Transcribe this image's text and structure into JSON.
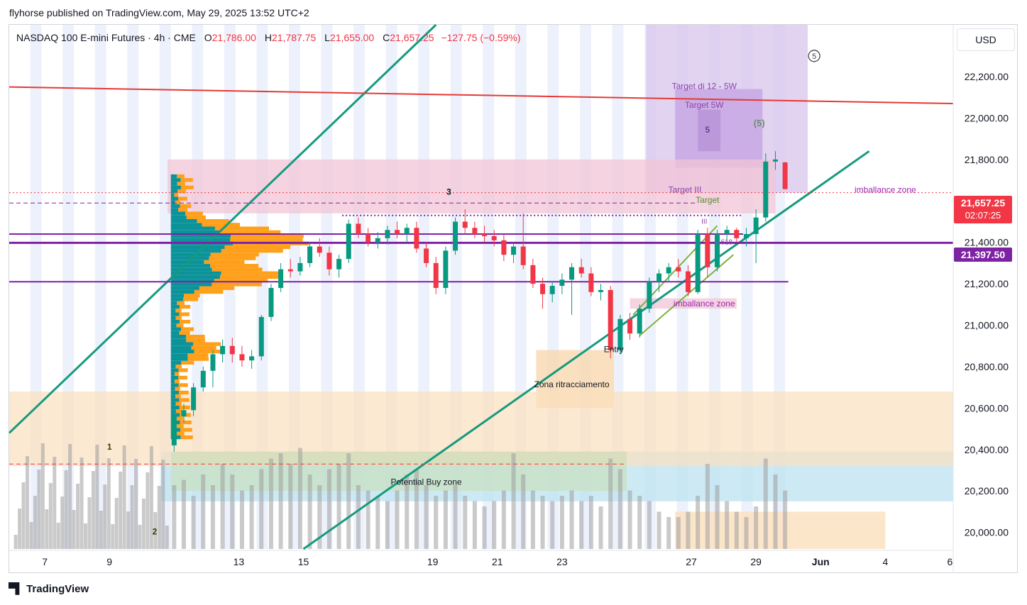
{
  "header": {
    "published_by": "flyhorse published on TradingView.com, May 29, 2025 13:52 UTC+2"
  },
  "legend": {
    "symbol": "NASDAQ 100 E-mini Futures · 4h · CME",
    "open_label": "O",
    "open": "21,786.00",
    "high_label": "H",
    "high": "21,787.75",
    "low_label": "L",
    "low": "21,655.00",
    "close_label": "C",
    "close": "21,657.25",
    "change": "−127.75 (−0.59%)"
  },
  "currency_button": "USD",
  "last_price_tag": {
    "price": "21,657.25",
    "countdown": "02:07:25",
    "color": "#f23645"
  },
  "line_price_tag": {
    "price": "21,397.50",
    "color": "#7e22a4"
  },
  "footer": {
    "brand": "TradingView"
  },
  "colors": {
    "up": "#089981",
    "down": "#f23645",
    "channel": "#159a7e",
    "red_line": "#e53935",
    "purple_line": "#7e22a4"
  },
  "chart_data": {
    "type": "candlestick",
    "y_axis": {
      "ticks": [
        "22,400.00",
        "22,200.00",
        "22,000.00",
        "21,800.00",
        "21,600.00",
        "21,400.00",
        "21,200.00",
        "21,000.00",
        "20,800.00",
        "20,600.00",
        "20,400.00",
        "20,200.00",
        "20,000.00"
      ],
      "tick_values": [
        22400,
        22200,
        22000,
        21800,
        21600,
        21400,
        21200,
        21000,
        20800,
        20600,
        20400,
        20200,
        20000
      ],
      "range": [
        19920,
        22450
      ]
    },
    "x_axis": {
      "ticks": [
        "7",
        "9",
        "13",
        "15",
        "19",
        "21",
        "23",
        "27",
        "29",
        "Jun",
        "4",
        "6"
      ],
      "tick_positions": [
        7,
        9,
        13,
        15,
        19,
        21,
        23,
        27,
        29,
        31,
        33,
        35
      ],
      "range": [
        5.9,
        35.1
      ]
    },
    "candles": [
      {
        "x": 11.0,
        "o": 20420,
        "h": 20580,
        "l": 20390,
        "c": 20560
      },
      {
        "x": 11.3,
        "o": 20560,
        "h": 20620,
        "l": 20530,
        "c": 20590
      },
      {
        "x": 11.6,
        "o": 20590,
        "h": 20720,
        "l": 20560,
        "c": 20700
      },
      {
        "x": 11.9,
        "o": 20700,
        "h": 20800,
        "l": 20680,
        "c": 20780
      },
      {
        "x": 12.2,
        "o": 20780,
        "h": 20880,
        "l": 20700,
        "c": 20860
      },
      {
        "x": 12.5,
        "o": 20860,
        "h": 20930,
        "l": 20820,
        "c": 20900
      },
      {
        "x": 12.8,
        "o": 20900,
        "h": 20940,
        "l": 20820,
        "c": 20860
      },
      {
        "x": 13.1,
        "o": 20860,
        "h": 20900,
        "l": 20800,
        "c": 20830
      },
      {
        "x": 13.4,
        "o": 20830,
        "h": 20880,
        "l": 20790,
        "c": 20850
      },
      {
        "x": 13.7,
        "o": 20850,
        "h": 21050,
        "l": 20830,
        "c": 21040
      },
      {
        "x": 14.0,
        "o": 21040,
        "h": 21200,
        "l": 21020,
        "c": 21180
      },
      {
        "x": 14.3,
        "o": 21180,
        "h": 21300,
        "l": 21160,
        "c": 21270
      },
      {
        "x": 14.6,
        "o": 21270,
        "h": 21320,
        "l": 21230,
        "c": 21260
      },
      {
        "x": 14.9,
        "o": 21260,
        "h": 21330,
        "l": 21240,
        "c": 21300
      },
      {
        "x": 15.2,
        "o": 21300,
        "h": 21400,
        "l": 21280,
        "c": 21380
      },
      {
        "x": 15.5,
        "o": 21380,
        "h": 21420,
        "l": 21330,
        "c": 21350
      },
      {
        "x": 15.8,
        "o": 21350,
        "h": 21380,
        "l": 21240,
        "c": 21270
      },
      {
        "x": 16.1,
        "o": 21270,
        "h": 21340,
        "l": 21230,
        "c": 21320
      },
      {
        "x": 16.4,
        "o": 21320,
        "h": 21510,
        "l": 21300,
        "c": 21490
      },
      {
        "x": 16.7,
        "o": 21490,
        "h": 21520,
        "l": 21420,
        "c": 21440
      },
      {
        "x": 17.0,
        "o": 21440,
        "h": 21470,
        "l": 21380,
        "c": 21400
      },
      {
        "x": 17.3,
        "o": 21400,
        "h": 21450,
        "l": 21370,
        "c": 21420
      },
      {
        "x": 17.6,
        "o": 21420,
        "h": 21480,
        "l": 21390,
        "c": 21460
      },
      {
        "x": 17.9,
        "o": 21460,
        "h": 21500,
        "l": 21420,
        "c": 21440
      },
      {
        "x": 18.2,
        "o": 21440,
        "h": 21490,
        "l": 21400,
        "c": 21470
      },
      {
        "x": 18.5,
        "o": 21470,
        "h": 21500,
        "l": 21350,
        "c": 21370
      },
      {
        "x": 18.8,
        "o": 21370,
        "h": 21400,
        "l": 21280,
        "c": 21300
      },
      {
        "x": 19.1,
        "o": 21300,
        "h": 21330,
        "l": 21150,
        "c": 21180
      },
      {
        "x": 19.4,
        "o": 21180,
        "h": 21380,
        "l": 21150,
        "c": 21360
      },
      {
        "x": 19.7,
        "o": 21360,
        "h": 21520,
        "l": 21340,
        "c": 21500
      },
      {
        "x": 20.0,
        "o": 21500,
        "h": 21560,
        "l": 21440,
        "c": 21470
      },
      {
        "x": 20.3,
        "o": 21470,
        "h": 21500,
        "l": 21420,
        "c": 21440
      },
      {
        "x": 20.6,
        "o": 21440,
        "h": 21480,
        "l": 21400,
        "c": 21430
      },
      {
        "x": 20.9,
        "o": 21430,
        "h": 21460,
        "l": 21380,
        "c": 21410
      },
      {
        "x": 21.2,
        "o": 21410,
        "h": 21440,
        "l": 21310,
        "c": 21340
      },
      {
        "x": 21.5,
        "o": 21340,
        "h": 21400,
        "l": 21300,
        "c": 21380
      },
      {
        "x": 21.8,
        "o": 21380,
        "h": 21540,
        "l": 21270,
        "c": 21290
      },
      {
        "x": 22.1,
        "o": 21290,
        "h": 21320,
        "l": 21180,
        "c": 21200
      },
      {
        "x": 22.4,
        "o": 21200,
        "h": 21230,
        "l": 21080,
        "c": 21150
      },
      {
        "x": 22.7,
        "o": 21150,
        "h": 21210,
        "l": 21110,
        "c": 21190
      },
      {
        "x": 23.0,
        "o": 21190,
        "h": 21250,
        "l": 21150,
        "c": 21220
      },
      {
        "x": 23.3,
        "o": 21220,
        "h": 21300,
        "l": 21050,
        "c": 21280
      },
      {
        "x": 23.6,
        "o": 21280,
        "h": 21320,
        "l": 21230,
        "c": 21250
      },
      {
        "x": 23.9,
        "o": 21250,
        "h": 21280,
        "l": 21140,
        "c": 21160
      },
      {
        "x": 24.2,
        "o": 21160,
        "h": 21200,
        "l": 21120,
        "c": 21170
      },
      {
        "x": 24.5,
        "o": 21170,
        "h": 21190,
        "l": 20840,
        "c": 20880
      },
      {
        "x": 24.8,
        "o": 20880,
        "h": 21050,
        "l": 20860,
        "c": 21030
      },
      {
        "x": 25.1,
        "o": 21030,
        "h": 21060,
        "l": 20930,
        "c": 20960
      },
      {
        "x": 25.4,
        "o": 20960,
        "h": 21100,
        "l": 20940,
        "c": 21080
      },
      {
        "x": 25.7,
        "o": 21080,
        "h": 21230,
        "l": 21060,
        "c": 21210
      },
      {
        "x": 26.0,
        "o": 21210,
        "h": 21270,
        "l": 21160,
        "c": 21250
      },
      {
        "x": 26.3,
        "o": 21250,
        "h": 21300,
        "l": 21210,
        "c": 21280
      },
      {
        "x": 26.6,
        "o": 21280,
        "h": 21320,
        "l": 21230,
        "c": 21260
      },
      {
        "x": 26.9,
        "o": 21260,
        "h": 21290,
        "l": 21140,
        "c": 21160
      },
      {
        "x": 27.2,
        "o": 21160,
        "h": 21460,
        "l": 21150,
        "c": 21440
      },
      {
        "x": 27.5,
        "o": 21440,
        "h": 21470,
        "l": 21230,
        "c": 21280
      },
      {
        "x": 27.8,
        "o": 21280,
        "h": 21460,
        "l": 21260,
        "c": 21440
      },
      {
        "x": 28.1,
        "o": 21440,
        "h": 21480,
        "l": 21400,
        "c": 21460
      },
      {
        "x": 28.4,
        "o": 21460,
        "h": 21470,
        "l": 21400,
        "c": 21420
      },
      {
        "x": 28.7,
        "o": 21420,
        "h": 21470,
        "l": 21380,
        "c": 21440
      },
      {
        "x": 29.0,
        "o": 21440,
        "h": 21560,
        "l": 21300,
        "c": 21520
      },
      {
        "x": 29.3,
        "o": 21520,
        "h": 21830,
        "l": 21500,
        "c": 21790
      },
      {
        "x": 29.6,
        "o": 21790,
        "h": 21840,
        "l": 21750,
        "c": 21800
      },
      {
        "x": 29.9,
        "o": 21786,
        "h": 21788,
        "l": 21655,
        "c": 21657
      }
    ],
    "volume": [
      60,
      65,
      50,
      70,
      60,
      80,
      70,
      55,
      60,
      75,
      85,
      90,
      80,
      95,
      70,
      60,
      75,
      80,
      90,
      60,
      55,
      50,
      45,
      55,
      70,
      75,
      60,
      50,
      55,
      60,
      50,
      45,
      40,
      45,
      55,
      90,
      70,
      55,
      50,
      45,
      50,
      55,
      45,
      50,
      40,
      85,
      75,
      55,
      50,
      45,
      35,
      30,
      30,
      35,
      50,
      80,
      60,
      45,
      35,
      30,
      40,
      85,
      70,
      55
    ],
    "horizontal_lines": [
      {
        "value": 21397.5,
        "color": "#7e22a4",
        "width": 3
      },
      {
        "value": 21440,
        "color": "#7e22a4",
        "width": 2
      },
      {
        "value": 21210,
        "color": "#7e22a4",
        "width": 2
      }
    ],
    "zones": [
      {
        "label": "imballance zone",
        "from": 21540,
        "to": 21800,
        "color": "#f2c4d6"
      },
      {
        "label": "imballance zone",
        "from": 21080,
        "to": 21130,
        "color": "#f2c4d6"
      },
      {
        "label": "Zona ritracciamento",
        "from": 20600,
        "to": 20880,
        "color": "#f8d5a8"
      },
      {
        "label": "Potential Buy zone",
        "from": 20150,
        "to": 20390,
        "color": "#bce3f0"
      }
    ],
    "annotations": [
      "3",
      "1",
      "2",
      "5",
      "(5)",
      "Target di 12 - 5W",
      "Target 5W",
      "Target III",
      "Target",
      "Entry",
      "III",
      "0.618"
    ],
    "wave_circle_label": "5"
  }
}
